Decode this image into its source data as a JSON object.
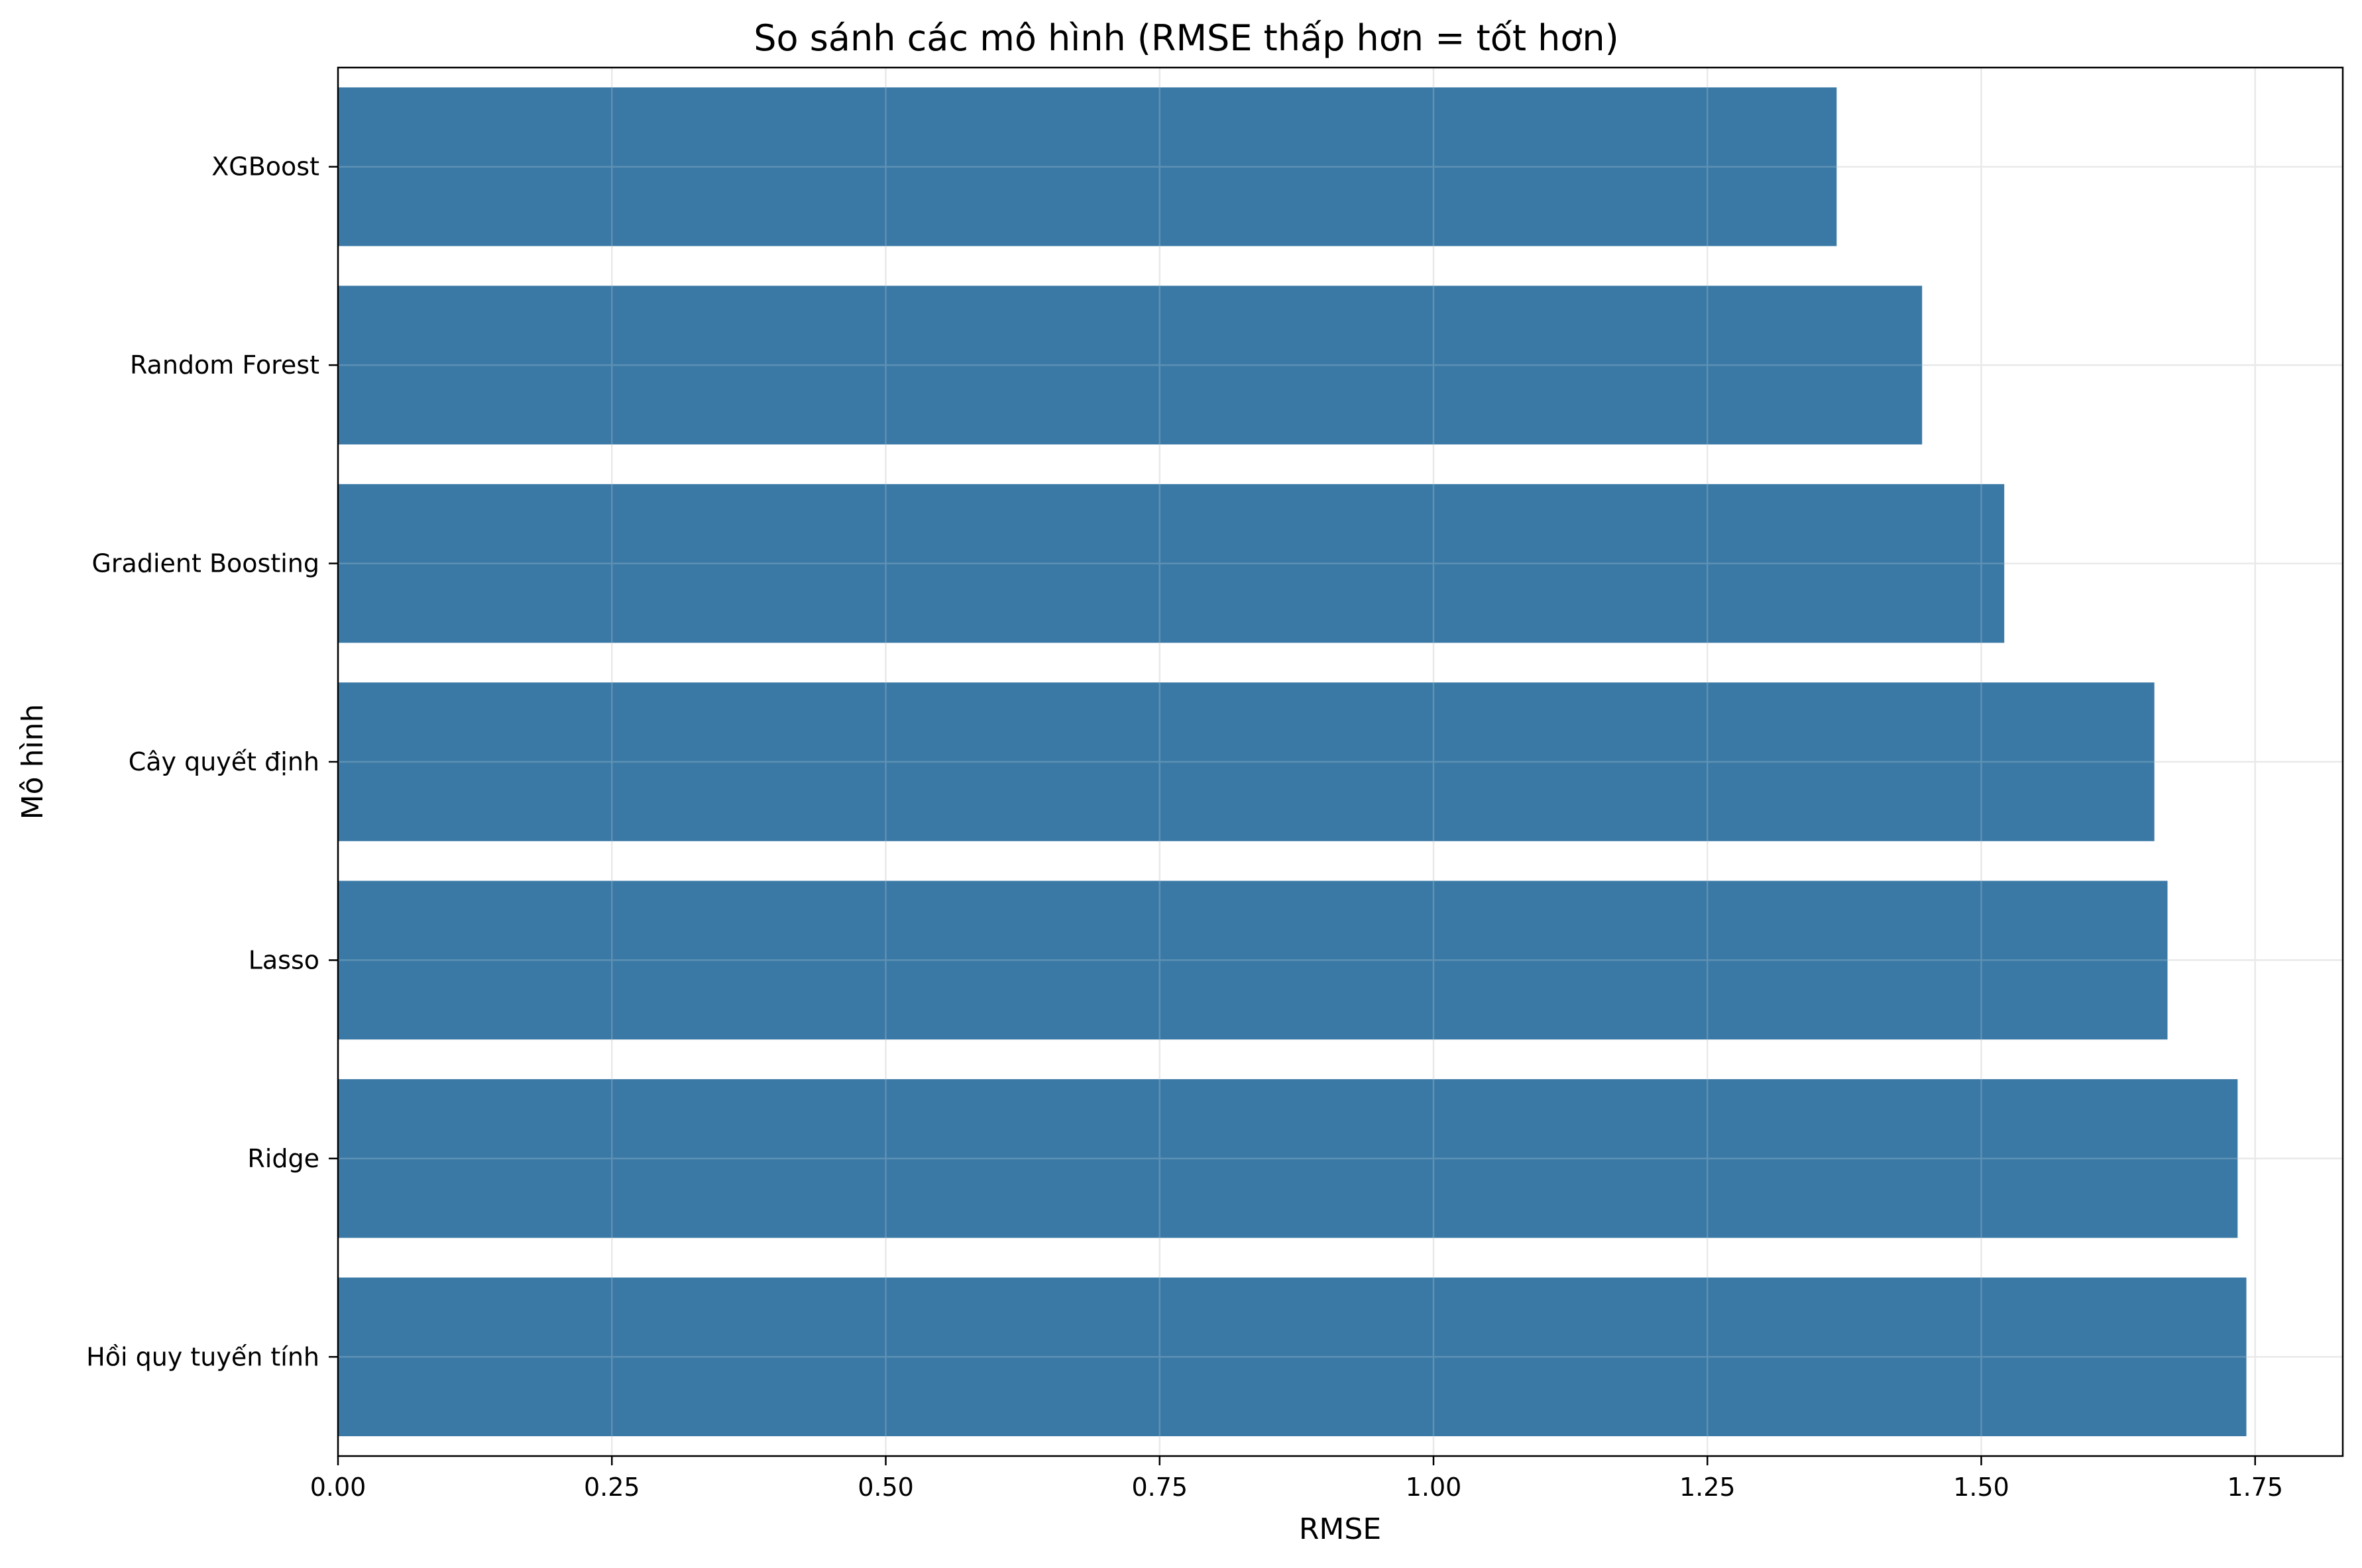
{
  "chart_data": {
    "type": "bar",
    "orientation": "horizontal",
    "title": "So sánh các mô hình (RMSE thấp hơn = tốt hơn)",
    "xlabel": "RMSE",
    "ylabel": "Mô hình",
    "categories": [
      "XGBoost",
      "Random Forest",
      "Gradient Boosting",
      "Cây quyết định",
      "Lasso",
      "Ridge",
      "Hồi quy tuyến tính"
    ],
    "values": [
      1.368,
      1.446,
      1.521,
      1.658,
      1.67,
      1.734,
      1.742
    ],
    "xlim": [
      0,
      1.83
    ],
    "xticks": [
      0.0,
      0.25,
      0.5,
      0.75,
      1.0,
      1.25,
      1.5,
      1.75
    ],
    "xtick_labels": [
      "0.00",
      "0.25",
      "0.50",
      "0.75",
      "1.00",
      "1.25",
      "1.50",
      "1.75"
    ],
    "grid": true,
    "legend": "none",
    "colors": {
      "bar": "#3274a1",
      "grid": "#e5e5e5",
      "axis": "#000000"
    }
  }
}
